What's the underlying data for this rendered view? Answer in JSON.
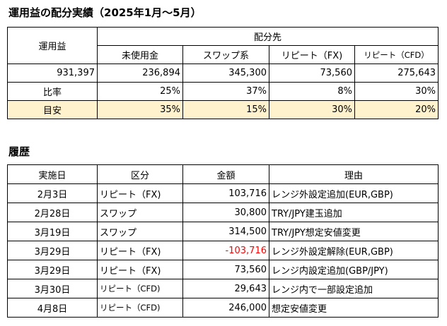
{
  "summary": {
    "title": "運用益の配分実績（2025年1月～5月）",
    "profit_header": "運用益",
    "alloc_header": "配分先",
    "columns": [
      "未使用金",
      "スワップ系",
      "リピート（FX)",
      "リピート（CFD）"
    ],
    "profit_value": "931,397",
    "amounts": [
      "236,894",
      "345,300",
      "73,560",
      "275,643"
    ],
    "ratio_label": "比率",
    "ratios": [
      "25%",
      "37%",
      "8%",
      "30%"
    ],
    "target_label": "目安",
    "targets": [
      "35%",
      "15%",
      "30%",
      "20%"
    ]
  },
  "history": {
    "title": "履歴",
    "headers": [
      "実施日",
      "区分",
      "金額",
      "理由"
    ],
    "rows": [
      {
        "date": "2月3日",
        "category": "リピート（FX)",
        "amount": "103,716",
        "reason": "レンジ外設定追加(EUR,GBP)"
      },
      {
        "date": "2月28日",
        "category": "スワップ",
        "amount": "30,800",
        "reason": "TRY/JPY建玉追加"
      },
      {
        "date": "3月19日",
        "category": "スワップ",
        "amount": "314,500",
        "reason": "TRY/JPY想定安値変更"
      },
      {
        "date": "3月29日",
        "category": "リピート（FX)",
        "amount": "-103,716",
        "reason": "レンジ外設定解除(EUR,GBP)"
      },
      {
        "date": "3月29日",
        "category": "リピート（FX)",
        "amount": "73,560",
        "reason": "レンジ内設定追加(GBP/JPY)"
      },
      {
        "date": "3月30日",
        "category": "リピート（CFD)",
        "amount": "29,643",
        "reason": "レンジ内で一部設定追加"
      },
      {
        "date": "4月8日",
        "category": "リピート（CFD)",
        "amount": "246,000",
        "reason": "想定安値変更"
      }
    ],
    "negative_color": "#FF0000"
  },
  "colors": {
    "target_row_bg": "#FFF2CC",
    "border": "#000000"
  }
}
